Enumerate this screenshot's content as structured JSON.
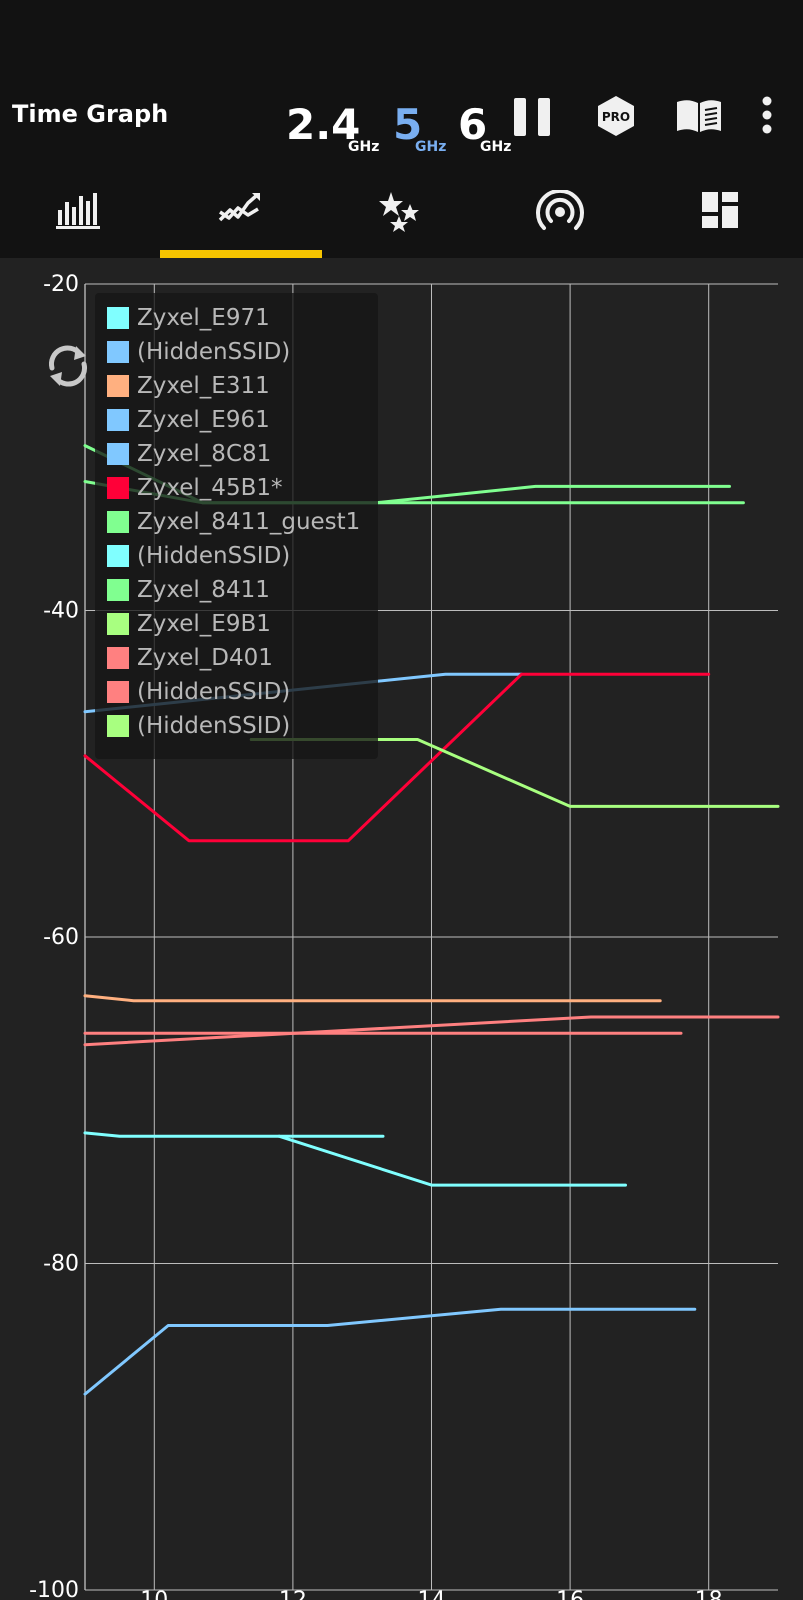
{
  "app": {
    "title": "Time Graph"
  },
  "bands": [
    {
      "value": "2.4",
      "unit": "GHz",
      "color": "#ffffff"
    },
    {
      "value": "5",
      "unit": "GHz",
      "color": "#79aef0"
    },
    {
      "value": "6",
      "unit": "GHz",
      "color": "#ffffff"
    }
  ],
  "toolbar": {
    "pause_icon": "pause-icon",
    "pro_badge": "PRO",
    "guide_icon": "book-icon",
    "menu_icon": "more-vert-icon"
  },
  "tabs": [
    {
      "icon": "bar-chart-icon",
      "selected": false
    },
    {
      "icon": "time-graph-icon",
      "selected": true
    },
    {
      "icon": "stars-icon",
      "selected": false
    },
    {
      "icon": "signal-ring-icon",
      "selected": false
    },
    {
      "icon": "dashboard-icon",
      "selected": false
    }
  ],
  "accent_color": "#f7c500",
  "chart_data": {
    "type": "line",
    "title": "",
    "xlabel": "",
    "ylabel": "",
    "xlim": [
      9,
      19
    ],
    "ylim": [
      -100,
      -20
    ],
    "x_ticks": [
      10,
      12,
      14,
      16,
      18
    ],
    "y_ticks": [
      -20,
      -40,
      -60,
      -80,
      -100
    ],
    "grid": true,
    "legend_position": "top-left",
    "series": [
      {
        "name": "Zyxel_E971",
        "color": "#80ffff",
        "points": [
          [
            9,
            -72
          ],
          [
            9.5,
            -72.2
          ],
          [
            11.8,
            -72.2
          ],
          [
            14,
            -75.2
          ],
          [
            16.8,
            -75.2
          ]
        ]
      },
      {
        "name": "(HiddenSSID)",
        "color": "#80c8ff",
        "points": [
          [
            9,
            -88
          ],
          [
            10.2,
            -83.8
          ],
          [
            12.5,
            -83.8
          ],
          [
            15,
            -82.8
          ],
          [
            17.8,
            -82.8
          ]
        ]
      },
      {
        "name": "Zyxel_E311",
        "color": "#ffb080",
        "points": [
          [
            9,
            -63.6
          ],
          [
            9.7,
            -63.9
          ],
          [
            17.3,
            -63.9
          ]
        ]
      },
      {
        "name": "Zyxel_E961",
        "color": "#80c8ff",
        "points": [
          [
            9,
            -46.2
          ],
          [
            14.2,
            -43.9
          ],
          [
            15.3,
            -43.9
          ]
        ]
      },
      {
        "name": "Zyxel_8C81",
        "color": "#80c8ff",
        "points": []
      },
      {
        "name": "Zyxel_45B1*",
        "color": "#ff0038",
        "points": [
          [
            9,
            -48.9
          ],
          [
            10.5,
            -54.1
          ],
          [
            12.8,
            -54.1
          ],
          [
            15.3,
            -43.9
          ],
          [
            18,
            -43.9
          ]
        ]
      },
      {
        "name": "Zyxel_8411_guest1",
        "color": "#80ff90",
        "points": [
          [
            9,
            -29.9
          ],
          [
            10.7,
            -33.4
          ],
          [
            13.2,
            -33.4
          ],
          [
            15.5,
            -32.4
          ],
          [
            18.3,
            -32.4
          ]
        ]
      },
      {
        "name": "(HiddenSSID)",
        "color": "#80ffff",
        "points": [
          [
            11.8,
            -72.2
          ],
          [
            13.3,
            -72.2
          ]
        ]
      },
      {
        "name": "Zyxel_8411",
        "color": "#80ff90",
        "points": [
          [
            9,
            -32.1
          ],
          [
            10.7,
            -33.4
          ],
          [
            18.5,
            -33.4
          ]
        ]
      },
      {
        "name": "Zyxel_E9B1",
        "color": "#a8ff80",
        "points": [
          [
            11.4,
            -47.9
          ],
          [
            13.8,
            -47.9
          ],
          [
            16,
            -52
          ],
          [
            19,
            -52
          ]
        ]
      },
      {
        "name": "Zyxel_D401",
        "color": "#ff8080",
        "points": [
          [
            9,
            -65.9
          ],
          [
            10,
            -65.9
          ],
          [
            17.6,
            -65.9
          ]
        ]
      },
      {
        "name": "(HiddenSSID)",
        "color": "#ff8080",
        "points": [
          [
            9,
            -66.6
          ],
          [
            16.3,
            -64.9
          ],
          [
            19,
            -64.9
          ]
        ]
      },
      {
        "name": "(HiddenSSID)",
        "color": "#a8ff80",
        "points": [
          [
            11.4,
            -47.9
          ],
          [
            12.6,
            -47.9
          ]
        ]
      }
    ]
  }
}
